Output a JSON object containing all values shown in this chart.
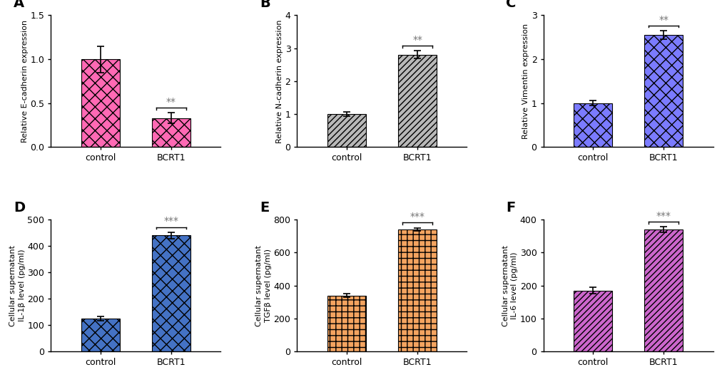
{
  "panels": [
    {
      "label": "A",
      "ylabel": "Relative E-cadherin expression",
      "categories": [
        "control",
        "BCRT1"
      ],
      "values": [
        1.0,
        0.33
      ],
      "errors": [
        0.15,
        0.06
      ],
      "ylim": [
        0,
        1.5
      ],
      "yticks": [
        0.0,
        0.5,
        1.0,
        1.5
      ],
      "sig": "**",
      "sig_bar_idx": 1,
      "hatch": "xx",
      "bar_color": "#FF69B4",
      "edgecolor": "#000000"
    },
    {
      "label": "B",
      "ylabel": "Relative N-cadherin expression",
      "categories": [
        "control",
        "BCRT1"
      ],
      "values": [
        1.0,
        2.8
      ],
      "errors": [
        0.07,
        0.12
      ],
      "ylim": [
        0,
        4
      ],
      "yticks": [
        0,
        1,
        2,
        3,
        4
      ],
      "sig": "**",
      "sig_bar_idx": 1,
      "hatch": "////",
      "bar_color": "#B8B8B8",
      "edgecolor": "#000000"
    },
    {
      "label": "C",
      "ylabel": "Relative Vimentin expression",
      "categories": [
        "control",
        "BCRT1"
      ],
      "values": [
        1.0,
        2.55
      ],
      "errors": [
        0.06,
        0.1
      ],
      "ylim": [
        0,
        3
      ],
      "yticks": [
        0,
        1,
        2,
        3
      ],
      "sig": "**",
      "sig_bar_idx": 1,
      "hatch": "xx",
      "bar_color": "#7B7BFF",
      "edgecolor": "#000000"
    },
    {
      "label": "D",
      "ylabel": "Cellular supernatant\nIL-1β level (pg/ml)",
      "categories": [
        "control",
        "BCRT1"
      ],
      "values": [
        125,
        440
      ],
      "errors": [
        8,
        12
      ],
      "ylim": [
        0,
        500
      ],
      "yticks": [
        0,
        100,
        200,
        300,
        400,
        500
      ],
      "sig": "***",
      "sig_bar_idx": 1,
      "hatch": "xx",
      "bar_color": "#4472C4",
      "edgecolor": "#000000"
    },
    {
      "label": "E",
      "ylabel": "Cellular supernatant\nTGFβ level (pg/ml)",
      "categories": [
        "control",
        "BCRT1"
      ],
      "values": [
        340,
        740
      ],
      "errors": [
        12,
        10
      ],
      "ylim": [
        0,
        800
      ],
      "yticks": [
        0,
        200,
        400,
        600,
        800
      ],
      "sig": "***",
      "sig_bar_idx": 1,
      "hatch": "++",
      "bar_color": "#F4A460",
      "edgecolor": "#000000"
    },
    {
      "label": "F",
      "ylabel": "Cellular supernatant\nIL-6 level (pg/ml)",
      "categories": [
        "control",
        "BCRT1"
      ],
      "values": [
        185,
        370
      ],
      "errors": [
        10,
        8
      ],
      "ylim": [
        0,
        400
      ],
      "yticks": [
        0,
        100,
        200,
        300,
        400
      ],
      "sig": "***",
      "sig_bar_idx": 1,
      "hatch": "////",
      "bar_color": "#CC66CC",
      "edgecolor": "#000000"
    }
  ],
  "background_color": "#FFFFFF",
  "label_fontsize": 14,
  "tick_fontsize": 9,
  "ylabel_fontsize": 8,
  "sig_fontsize": 10,
  "bar_width": 0.55
}
